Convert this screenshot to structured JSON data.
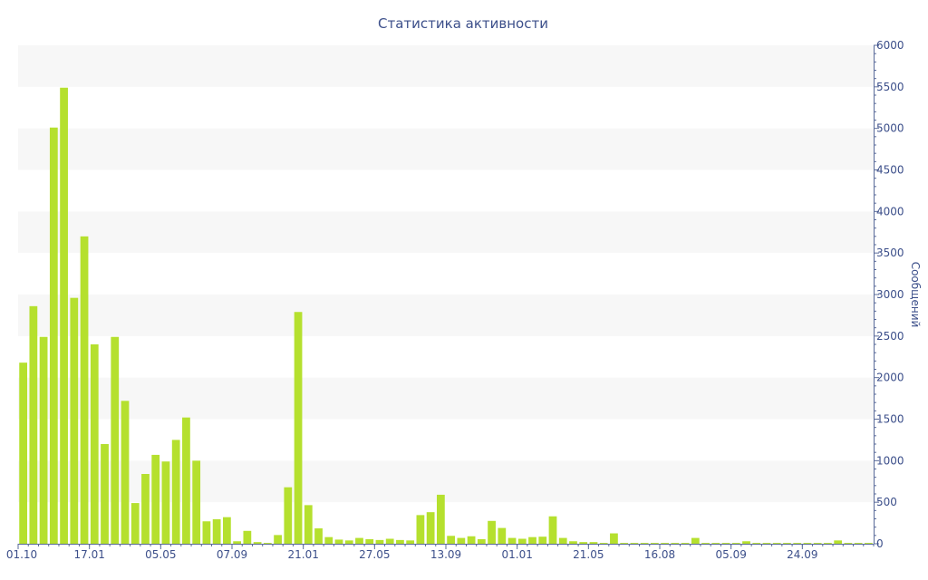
{
  "chart_data": {
    "type": "bar",
    "title": "Статистика активности",
    "xlabel": "",
    "ylabel": "Сообщений",
    "ylim": [
      0,
      6000
    ],
    "y_ticks": [
      0,
      500,
      1000,
      1500,
      2000,
      2500,
      3000,
      3500,
      4000,
      4500,
      5000,
      5500,
      6000
    ],
    "y_axis_side": "right",
    "x_tick_labels": [
      "01.10",
      "17.01",
      "05.05",
      "07.09",
      "21.01",
      "27.05",
      "13.09",
      "01.01",
      "21.05",
      "16.08",
      "05.09",
      "24.09"
    ],
    "x_tick_label_bar_index": [
      0,
      7,
      14,
      21,
      28,
      35,
      42,
      49,
      56,
      63,
      70,
      77
    ],
    "grid": "alternating horizontal bands",
    "legend": "none",
    "bar_color": "#b5e02e",
    "band_color": "#f7f7f7",
    "axis_color": "#5a6b9a",
    "text_color": "#3c4f8a",
    "values": [
      2180,
      2860,
      2490,
      5010,
      5490,
      2960,
      3700,
      2400,
      1200,
      2490,
      1720,
      490,
      840,
      1070,
      990,
      1250,
      1520,
      1000,
      270,
      295,
      320,
      30,
      155,
      20,
      10,
      105,
      680,
      2790,
      465,
      185,
      80,
      50,
      40,
      70,
      55,
      45,
      60,
      45,
      40,
      345,
      380,
      590,
      95,
      70,
      90,
      55,
      275,
      190,
      70,
      60,
      80,
      85,
      330,
      70,
      30,
      20,
      20,
      10,
      125,
      10,
      10,
      10,
      10,
      10,
      10,
      10,
      70,
      10,
      10,
      10,
      10,
      30,
      10,
      10,
      10,
      10,
      10,
      10,
      10,
      10,
      40,
      10,
      10,
      10
    ]
  }
}
